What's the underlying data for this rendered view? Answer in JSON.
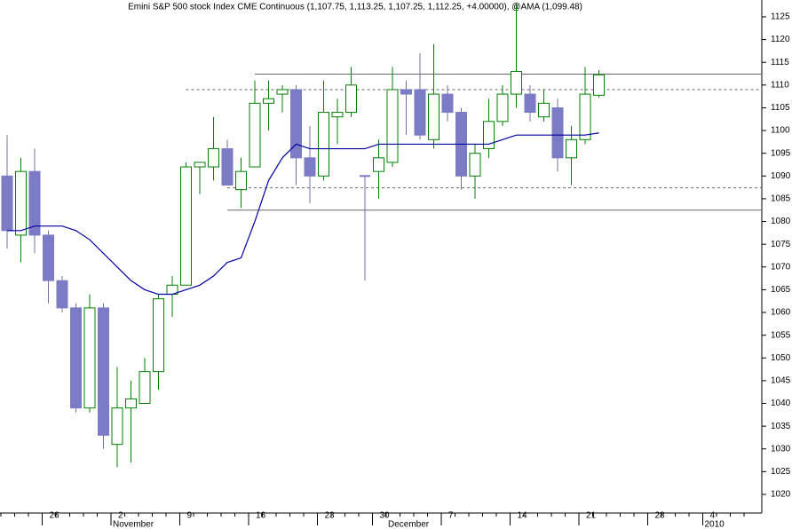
{
  "chart_data": {
    "type": "candlestick",
    "title": "Emini S&P 500 stock Index CME Continuous (1,107.75, 1,113.25, 1,107.25, 1,112.25, +4.00000), @AMA (1,099.48)",
    "categories": [
      null,
      null,
      null,
      "26",
      null,
      null,
      null,
      null,
      "2",
      null,
      null,
      null,
      null,
      "9",
      null,
      null,
      null,
      null,
      "16",
      null,
      null,
      null,
      null,
      "23",
      null,
      null,
      null,
      "30",
      null,
      null,
      null,
      null,
      "7",
      null,
      null,
      null,
      null,
      "14",
      null,
      null,
      null,
      null,
      "21",
      null,
      null,
      null,
      null,
      "28",
      null,
      null,
      null,
      "4",
      null,
      null,
      null
    ],
    "months": [
      null,
      null,
      null,
      null,
      null,
      null,
      null,
      null,
      "November",
      null,
      null,
      null,
      null,
      null,
      null,
      null,
      null,
      null,
      null,
      null,
      null,
      null,
      null,
      null,
      null,
      null,
      null,
      null,
      "December",
      null,
      null,
      null,
      null,
      null,
      null,
      null,
      null,
      null,
      null,
      null,
      null,
      null,
      null,
      null,
      null,
      null,
      null,
      null,
      null,
      null,
      null,
      "2010",
      null,
      null,
      null
    ],
    "open": [
      1090,
      1077,
      1091,
      1077,
      1067,
      1061,
      1039,
      1061,
      1031,
      1039,
      1040,
      1047,
      1064,
      1066,
      1092,
      1092,
      1096,
      1087,
      1092,
      1106,
      1108,
      1109,
      1094,
      1090,
      1103,
      1104,
      1090,
      1091,
      1093,
      1109,
      1109,
      1098,
      1108,
      1104,
      1090,
      1096,
      1102,
      1108,
      1108,
      1103,
      1105,
      1094,
      1098,
      1107.75,
      null,
      null,
      null,
      null,
      null,
      null,
      null,
      null,
      null,
      null,
      null
    ],
    "high": [
      1099,
      1094,
      1096,
      1078,
      1068,
      1062,
      1064,
      1062,
      1048,
      1045,
      1050,
      1064,
      1068,
      1093,
      1093,
      1103,
      1098,
      1094,
      1111,
      1111,
      1110,
      1110,
      1101,
      1111,
      1107,
      1114,
      1090,
      1098,
      1114,
      1111,
      1117,
      1119,
      1110,
      1105,
      1097,
      1107,
      1110,
      1128,
      1110,
      1109,
      1107,
      1101,
      1114,
      1113.25,
      null,
      null,
      null,
      null,
      null,
      null,
      null,
      null,
      null,
      null,
      null
    ],
    "low": [
      1074,
      1071,
      1073,
      1062,
      1060,
      1038,
      1038,
      1030,
      1026,
      1027,
      1040,
      1043,
      1059,
      1066,
      1086,
      1089,
      1088,
      1083,
      1092,
      1100,
      1104,
      1088,
      1084,
      1089,
      1097,
      1103,
      1067,
      1085,
      1092,
      1099,
      1098,
      1096,
      1102,
      1087,
      1085,
      1094,
      1101,
      1105,
      1102,
      1102,
      1091,
      1088,
      1097,
      1107.25,
      null,
      null,
      null,
      null,
      null,
      null,
      null,
      null,
      null,
      null,
      null
    ],
    "close": [
      1078,
      1091,
      1077,
      1067,
      1061,
      1039,
      1061,
      1033,
      1039,
      1041,
      1047,
      1063,
      1066,
      1092,
      1093,
      1096,
      1088,
      1091,
      1106,
      1107,
      1109,
      1094,
      1090,
      1104,
      1104,
      1110,
      1090,
      1094,
      1109,
      1108,
      1099,
      1108,
      1104,
      1090,
      1095,
      1102,
      1108,
      1113,
      1104,
      1106,
      1094,
      1098,
      1108,
      1112.25,
      null,
      null,
      null,
      null,
      null,
      null,
      null,
      null,
      null,
      null,
      null
    ],
    "up_color": "#008000",
    "down_color": "#7b7bc6",
    "ama": {
      "color": "#0000a0",
      "values": [
        1078,
        1078,
        1079,
        1079,
        1079,
        1078,
        1076,
        1073,
        1070,
        1067,
        1065,
        1064,
        1064,
        1065,
        1066,
        1068,
        1071,
        1072,
        1080,
        1089,
        1094,
        1097,
        1096,
        1096,
        1096,
        1096,
        1096,
        1097,
        1097,
        1097,
        1097,
        1097,
        1097,
        1097,
        1097,
        1097,
        1098,
        1099,
        1099,
        1099,
        1099,
        1099,
        1099,
        1099.48,
        null,
        null,
        null,
        null,
        null,
        null,
        null,
        null,
        null,
        null,
        null
      ]
    },
    "levels": [
      {
        "value": 1112.4,
        "style": "solid",
        "start": 18
      },
      {
        "value": 1109,
        "style": "dashed",
        "start": 13
      },
      {
        "value": 1087.4,
        "style": "dashed",
        "start": 16
      },
      {
        "value": 1082.5,
        "style": "solid",
        "start": 16
      }
    ],
    "ylim": [
      1015.9,
      1128.7
    ],
    "yticks": [
      1020,
      1025,
      1030,
      1035,
      1040,
      1045,
      1050,
      1055,
      1060,
      1065,
      1070,
      1075,
      1080,
      1085,
      1090,
      1095,
      1100,
      1105,
      1110,
      1115,
      1120,
      1125
    ]
  }
}
